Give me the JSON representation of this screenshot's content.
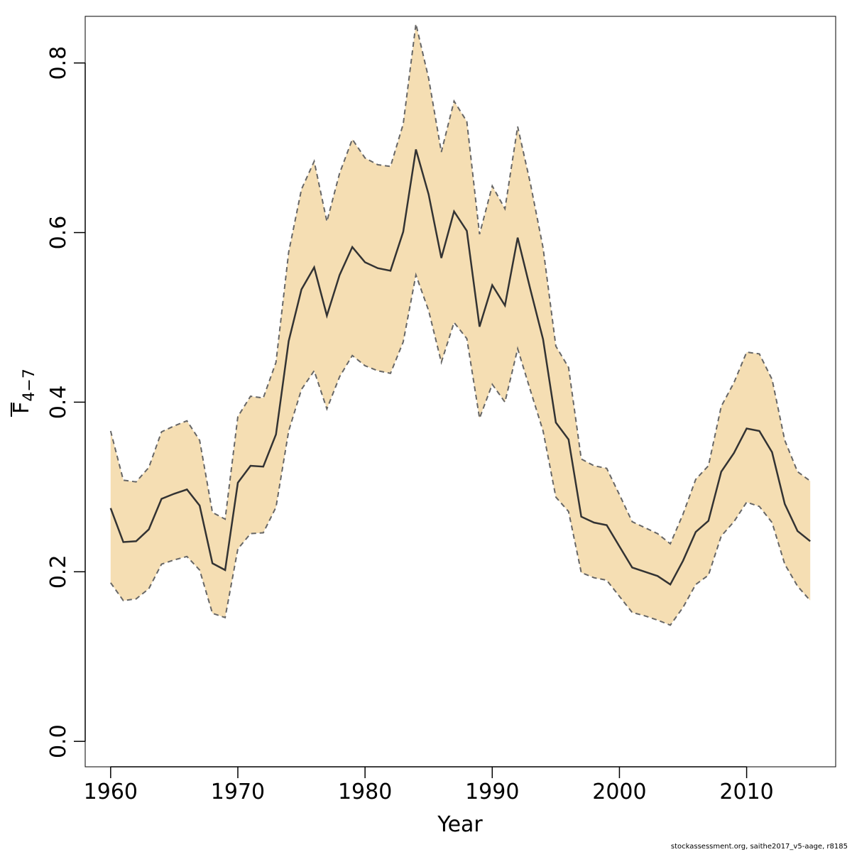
{
  "chart_data": {
    "type": "line",
    "xlabel": "Year",
    "ylabel": {
      "main": "F",
      "subscript": "4−7"
    },
    "xlim": [
      1958,
      2017
    ],
    "ylim": [
      -0.03,
      0.855
    ],
    "xticks": [
      1960,
      1970,
      1980,
      1990,
      2000,
      2010
    ],
    "yticks": [
      0.0,
      0.2,
      0.4,
      0.6,
      0.8
    ],
    "ytick_labels": [
      "0.0",
      "0.2",
      "0.4",
      "0.6",
      "0.8"
    ],
    "grid": false,
    "band_color": "#F5DEB3",
    "line_color": "#333333",
    "bound_color": "#666666",
    "x": [
      1960,
      1961,
      1962,
      1963,
      1964,
      1965,
      1966,
      1967,
      1968,
      1969,
      1970,
      1971,
      1972,
      1973,
      1974,
      1975,
      1976,
      1977,
      1978,
      1979,
      1980,
      1981,
      1982,
      1983,
      1984,
      1985,
      1986,
      1987,
      1988,
      1989,
      1990,
      1991,
      1992,
      1993,
      1994,
      1995,
      1996,
      1997,
      1998,
      1999,
      2000,
      2001,
      2002,
      2003,
      2004,
      2005,
      2006,
      2007,
      2008,
      2009,
      2010,
      2011,
      2012,
      2013,
      2014,
      2015
    ],
    "series": [
      {
        "role": "estimate",
        "values": [
          0.275,
          0.235,
          0.236,
          0.25,
          0.286,
          0.292,
          0.297,
          0.278,
          0.21,
          0.202,
          0.305,
          0.325,
          0.324,
          0.362,
          0.472,
          0.533,
          0.559,
          0.502,
          0.55,
          0.583,
          0.565,
          0.558,
          0.555,
          0.601,
          0.698,
          0.645,
          0.57,
          0.625,
          0.602,
          0.489,
          0.538,
          0.514,
          0.594,
          0.533,
          0.474,
          0.376,
          0.356,
          0.265,
          0.258,
          0.255,
          0.23,
          0.205,
          0.2,
          0.195,
          0.185,
          0.213,
          0.247,
          0.26,
          0.318,
          0.34,
          0.369,
          0.366,
          0.341,
          0.28,
          0.248,
          0.236
        ]
      },
      {
        "role": "upper",
        "values": [
          0.366,
          0.308,
          0.306,
          0.323,
          0.365,
          0.372,
          0.378,
          0.355,
          0.27,
          0.262,
          0.383,
          0.407,
          0.405,
          0.447,
          0.577,
          0.651,
          0.684,
          0.613,
          0.67,
          0.71,
          0.688,
          0.68,
          0.678,
          0.728,
          0.846,
          0.782,
          0.695,
          0.755,
          0.731,
          0.598,
          0.655,
          0.628,
          0.725,
          0.658,
          0.582,
          0.466,
          0.441,
          0.333,
          0.325,
          0.322,
          0.291,
          0.259,
          0.252,
          0.245,
          0.233,
          0.268,
          0.309,
          0.325,
          0.395,
          0.423,
          0.459,
          0.457,
          0.427,
          0.355,
          0.318,
          0.307
        ]
      },
      {
        "role": "lower",
        "values": [
          0.187,
          0.166,
          0.168,
          0.18,
          0.209,
          0.214,
          0.218,
          0.202,
          0.151,
          0.146,
          0.227,
          0.245,
          0.246,
          0.276,
          0.366,
          0.415,
          0.437,
          0.392,
          0.43,
          0.455,
          0.443,
          0.437,
          0.434,
          0.471,
          0.55,
          0.508,
          0.447,
          0.494,
          0.475,
          0.381,
          0.421,
          0.4,
          0.463,
          0.414,
          0.366,
          0.288,
          0.271,
          0.199,
          0.193,
          0.19,
          0.171,
          0.152,
          0.148,
          0.143,
          0.137,
          0.158,
          0.185,
          0.196,
          0.242,
          0.259,
          0.282,
          0.277,
          0.258,
          0.209,
          0.183,
          0.166
        ]
      }
    ]
  },
  "footer": {
    "note": "stockassessment.org, saithe2017_v5-aage, r8185"
  }
}
